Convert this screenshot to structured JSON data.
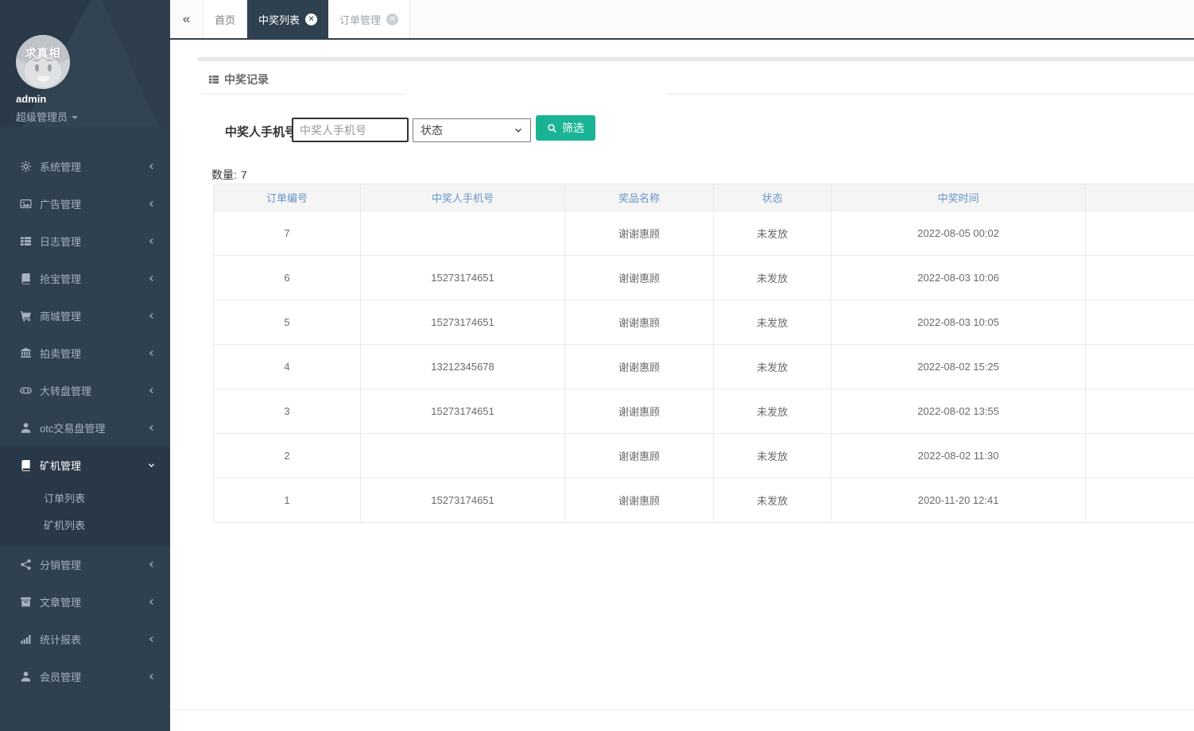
{
  "sidebar": {
    "avatar_text": "求真相",
    "username": "admin",
    "role": "超级管理员",
    "items": [
      {
        "name": "system",
        "label": "系统管理",
        "icon": "gear-icon"
      },
      {
        "name": "ads",
        "label": "广告管理",
        "icon": "image-icon"
      },
      {
        "name": "logs",
        "label": "日志管理",
        "icon": "list-icon"
      },
      {
        "name": "grab",
        "label": "抢宝管理",
        "icon": "book-icon"
      },
      {
        "name": "mall",
        "label": "商城管理",
        "icon": "cart-icon"
      },
      {
        "name": "auction",
        "label": "拍卖管理",
        "icon": "bank-icon"
      },
      {
        "name": "wheel",
        "label": "大转盘管理",
        "icon": "gamepad-icon"
      },
      {
        "name": "otc",
        "label": "otc交易盘管理",
        "icon": "user-icon"
      },
      {
        "name": "miner",
        "label": "矿机管理",
        "icon": "book-icon",
        "expanded": true,
        "children": [
          {
            "name": "order-list",
            "label": "订单列表"
          },
          {
            "name": "miner-list",
            "label": "矿机列表"
          }
        ]
      },
      {
        "name": "distribution",
        "label": "分销管理",
        "icon": "share-icon"
      },
      {
        "name": "articles",
        "label": "文章管理",
        "icon": "archive-icon"
      },
      {
        "name": "reports",
        "label": "统计报表",
        "icon": "bar-chart-icon"
      },
      {
        "name": "members",
        "label": "会员管理",
        "icon": "user-icon"
      }
    ]
  },
  "tabbar": {
    "tabs": [
      {
        "name": "home",
        "label": "首页",
        "active": false,
        "closable": false
      },
      {
        "name": "prize-list",
        "label": "中奖列表",
        "active": true,
        "closable": true
      },
      {
        "name": "orders",
        "label": "订单管理",
        "active": false,
        "closable": true
      }
    ]
  },
  "panel": {
    "title": "中奖记录"
  },
  "filters": {
    "phone_label": "中奖人手机号",
    "phone_placeholder": "中奖人手机号",
    "status_selected": "状态",
    "filter_button": "筛选"
  },
  "table": {
    "count_label": "数量:",
    "count_value": "7",
    "headers": [
      "订单编号",
      "中奖人手机号",
      "奖品名称",
      "状态",
      "中奖时间",
      ""
    ],
    "rows": [
      [
        "7",
        "",
        "谢谢惠顾",
        "未发放",
        "2022-08-05 00:02",
        ""
      ],
      [
        "6",
        "15273174651",
        "谢谢惠顾",
        "未发放",
        "2022-08-03 10:06",
        ""
      ],
      [
        "5",
        "15273174651",
        "谢谢惠顾",
        "未发放",
        "2022-08-03 10:05",
        ""
      ],
      [
        "4",
        "13212345678",
        "谢谢惠顾",
        "未发放",
        "2022-08-02 15:25",
        ""
      ],
      [
        "3",
        "15273174651",
        "谢谢惠顾",
        "未发放",
        "2022-08-02 13:55",
        ""
      ],
      [
        "2",
        "",
        "谢谢惠顾",
        "未发放",
        "2022-08-02 11:30",
        ""
      ],
      [
        "1",
        "15273174651",
        "谢谢惠顾",
        "未发放",
        "2020-11-20 12:41",
        ""
      ]
    ]
  },
  "colors": {
    "sidebar_bg": "#2f4050",
    "sidebar_active_bg": "#293846",
    "sidebar_text": "#a7b1c2",
    "accent_green": "#1ab394",
    "table_header_text": "#6693c4",
    "table_border": "#e7eaec"
  }
}
